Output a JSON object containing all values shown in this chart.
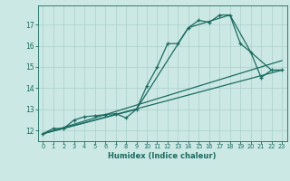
{
  "xlabel": "Humidex (Indice chaleur)",
  "bg_color": "#cce8e5",
  "grid_color": "#aacfcb",
  "line_color": "#1a6b60",
  "xlim": [
    -0.5,
    23.5
  ],
  "ylim": [
    11.5,
    17.9
  ],
  "yticks": [
    12,
    13,
    14,
    15,
    16,
    17
  ],
  "xticks": [
    0,
    1,
    2,
    3,
    4,
    5,
    6,
    7,
    8,
    9,
    10,
    11,
    12,
    13,
    14,
    15,
    16,
    17,
    18,
    19,
    20,
    21,
    22,
    23
  ],
  "line1_x": [
    0,
    1,
    2,
    3,
    4,
    5,
    6,
    7,
    8,
    9,
    10,
    11,
    12,
    13,
    14,
    15,
    16,
    17,
    18,
    19,
    20,
    21,
    22,
    23
  ],
  "line1_y": [
    11.85,
    12.1,
    12.1,
    12.5,
    12.65,
    12.7,
    12.75,
    12.8,
    12.6,
    13.0,
    14.1,
    15.0,
    16.1,
    16.1,
    16.85,
    17.2,
    17.1,
    17.45,
    17.45,
    16.1,
    15.7,
    14.5,
    14.85,
    14.85
  ],
  "line2_x": [
    0,
    9,
    14,
    18,
    20,
    22,
    23
  ],
  "line2_y": [
    11.85,
    13.0,
    16.85,
    17.45,
    15.7,
    14.85,
    14.85
  ],
  "line3_x": [
    0,
    23
  ],
  "line3_y": [
    11.85,
    14.85
  ],
  "line4_x": [
    0,
    23
  ],
  "line4_y": [
    11.85,
    15.3
  ]
}
